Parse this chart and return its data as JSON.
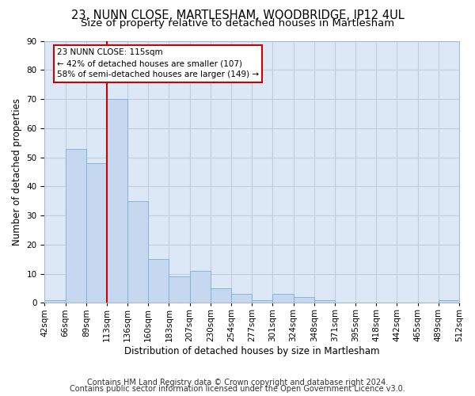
{
  "title_line1": "23, NUNN CLOSE, MARTLESHAM, WOODBRIDGE, IP12 4UL",
  "title_line2": "Size of property relative to detached houses in Martlesham",
  "xlabel": "Distribution of detached houses by size in Martlesham",
  "ylabel": "Number of detached properties",
  "bar_values": [
    1,
    53,
    48,
    70,
    35,
    15,
    9,
    11,
    5,
    3,
    1,
    3,
    2,
    1,
    0,
    0,
    0,
    0,
    0,
    1
  ],
  "bin_labels": [
    "42sqm",
    "66sqm",
    "89sqm",
    "113sqm",
    "136sqm",
    "160sqm",
    "183sqm",
    "207sqm",
    "230sqm",
    "254sqm",
    "277sqm",
    "301sqm",
    "324sqm",
    "348sqm",
    "371sqm",
    "395sqm",
    "418sqm",
    "442sqm",
    "465sqm",
    "489sqm",
    "512sqm"
  ],
  "bar_color": "#c5d8f0",
  "bar_edge_color": "#7ab0d8",
  "vline_color": "#cc0000",
  "vline_pos": 3.5,
  "annotation_box_text": "23 NUNN CLOSE: 115sqm\n← 42% of detached houses are smaller (107)\n58% of semi-detached houses are larger (149) →",
  "ylim": [
    0,
    90
  ],
  "yticks": [
    0,
    10,
    20,
    30,
    40,
    50,
    60,
    70,
    80,
    90
  ],
  "footer_line1": "Contains HM Land Registry data © Crown copyright and database right 2024.",
  "footer_line2": "Contains public sector information licensed under the Open Government Licence v3.0.",
  "bg_color": "#ffffff",
  "axes_bg_color": "#dce8f5",
  "grid_color": "#c0cfe0",
  "title_fontsize": 10.5,
  "subtitle_fontsize": 9.5,
  "axis_label_fontsize": 8.5,
  "tick_fontsize": 7.5,
  "annotation_fontsize": 7.5,
  "footer_fontsize": 7.0
}
